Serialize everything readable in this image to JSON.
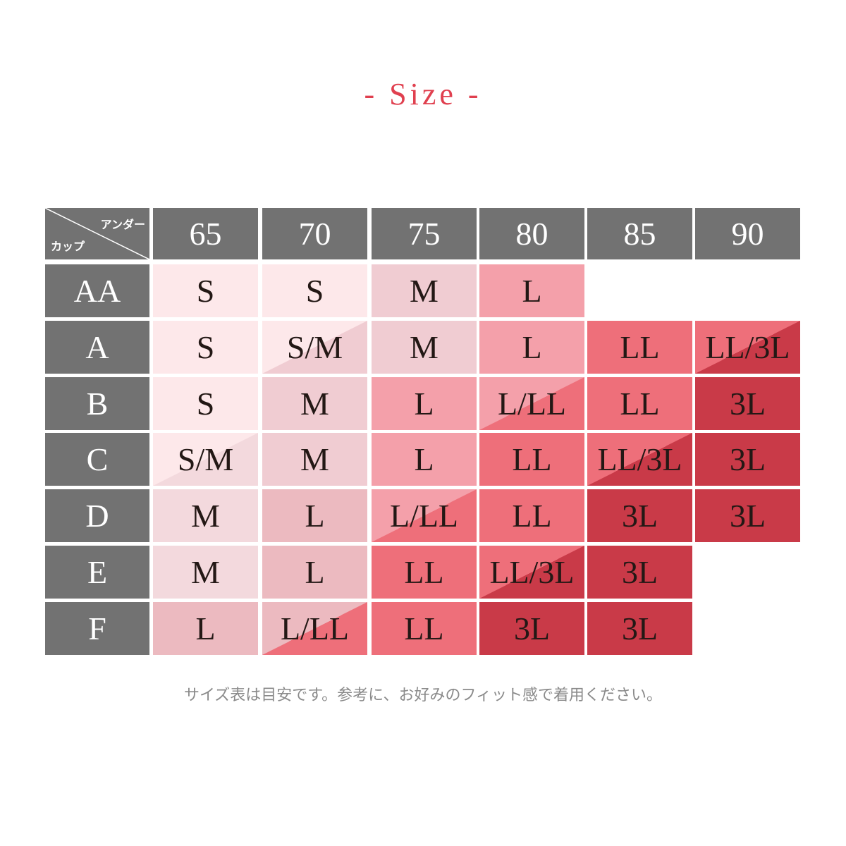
{
  "title": "- Size -",
  "table": {
    "corner": {
      "top": "アンダー",
      "bottom": "カップ"
    },
    "columns": [
      "65",
      "70",
      "75",
      "80",
      "85",
      "90"
    ],
    "rows": [
      {
        "label": "AA",
        "cells": [
          "S",
          "S",
          "M",
          "L",
          null,
          null
        ]
      },
      {
        "label": "A",
        "cells": [
          "S",
          "S/M",
          "M",
          "L",
          "LL",
          "LL/3L"
        ]
      },
      {
        "label": "B",
        "cells": [
          "S",
          "M",
          "L",
          "L/LL",
          "LL",
          "3L"
        ]
      },
      {
        "label": "C",
        "cells": [
          "S/M",
          "M",
          "L",
          "LL",
          "LL/3L",
          "3L"
        ]
      },
      {
        "label": "D",
        "cells": [
          "M",
          "L",
          "L/LL",
          "LL",
          "3L",
          "3L"
        ]
      },
      {
        "label": "E",
        "cells": [
          "M",
          "L",
          "LL",
          "LL/3L",
          "3L",
          null
        ]
      },
      {
        "label": "F",
        "cells": [
          "L",
          "L/LL",
          "LL",
          "3L",
          "3L",
          null
        ]
      }
    ]
  },
  "note": "サイズ表は目安です。参考に、お好みのフィット感で着用ください。"
}
